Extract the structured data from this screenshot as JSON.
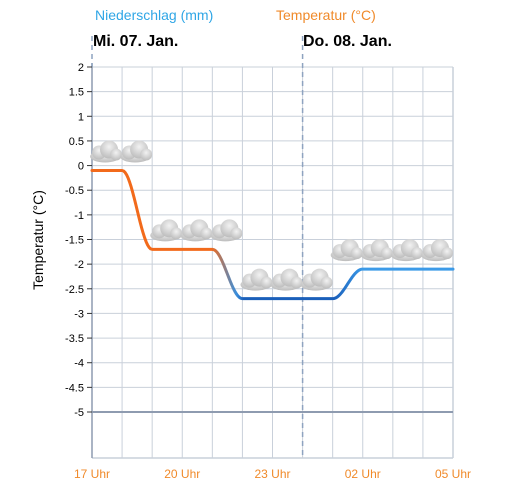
{
  "legend": {
    "precip_label": "Niederschlag (mm)",
    "precip_color": "#2fa6e6",
    "temp_label": "Temperatur (°C)",
    "temp_color": "#f08a2a"
  },
  "days": [
    "Mi. 07. Jan.",
    "Do. 08. Jan."
  ],
  "chart_data": {
    "type": "line",
    "ylabel": "Temperatur (°C)",
    "ylim": [
      -5,
      2
    ],
    "yticks": [
      "2",
      "1.5",
      "1",
      "0.5",
      "0",
      "-0.5",
      "-1",
      "-1.5",
      "-2",
      "-2.5",
      "-3",
      "-3.5",
      "-4",
      "-4.5",
      "-5"
    ],
    "xticks": [
      "17 Uhr",
      "20 Uhr",
      "23 Uhr",
      "02 Uhr",
      "05 Uhr"
    ],
    "xlim": [
      17,
      29
    ],
    "grid": true,
    "series": [
      {
        "values": [
          {
            "x": 17,
            "y": -0.1
          },
          {
            "x": 18,
            "y": -0.1
          },
          {
            "x": 19,
            "y": -1.7
          },
          {
            "x": 20,
            "y": -1.7
          },
          {
            "x": 21,
            "y": -1.7
          },
          {
            "x": 22,
            "y": -2.7
          },
          {
            "x": 23,
            "y": -2.7
          },
          {
            "x": 24,
            "y": -2.7
          },
          {
            "x": 25,
            "y": -2.7
          },
          {
            "x": 26,
            "y": -2.1
          },
          {
            "x": 27,
            "y": -2.1
          },
          {
            "x": 28,
            "y": -2.1
          },
          {
            "x": 29,
            "y": -2.1
          }
        ],
        "colors": {
          "warm": "#f26a1b",
          "cold_dark": "#1565c0",
          "cold_light": "#3b9ae8",
          "grid": "#c9d0da"
        }
      }
    ],
    "weather_icons": [
      "cloudy",
      "cloudy",
      "cloudy",
      "cloudy",
      "cloudy",
      "cloudy",
      "cloudy",
      "cloudy",
      "cloudy",
      "cloudy",
      "cloudy",
      "cloudy"
    ]
  }
}
